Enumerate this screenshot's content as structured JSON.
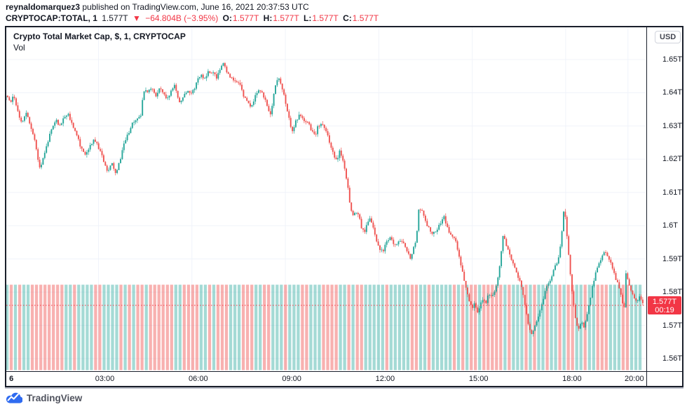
{
  "header": {
    "author": "reynaldomarquez3",
    "published": " published on TradingView.com, June 16, 2021 20:37:53 UTC",
    "symbol": "CRYPTOCAP:TOTAL, 1",
    "last_price": "1.577T",
    "direction_icon": "▼",
    "change": "−64.804B (−3.95%)",
    "ohlc": [
      {
        "label": "O:",
        "value": "1.577T"
      },
      {
        "label": "H:",
        "value": "1.577T"
      },
      {
        "label": "L:",
        "value": "1.577T"
      },
      {
        "label": "C:",
        "value": "1.577T"
      }
    ]
  },
  "legend": {
    "title": "Crypto Total Market Cap, $, 1, CRYPTOCAP",
    "indicator": "Vol"
  },
  "axis": {
    "currency_button": "USD"
  },
  "price_label": {
    "value": "1.577T",
    "countdown": "00:19"
  },
  "footer": {
    "brand": "TradingView"
  },
  "colors": {
    "up": "#26a69a",
    "down": "#ef5350",
    "volume_up": "rgba(38,166,154,0.42)",
    "volume_down": "rgba(239,83,80,0.45)",
    "grid": "#f0f3fa",
    "price_line": "#f23645",
    "badge": "#f23645",
    "accent_red": "#f23645",
    "brand_blue": "#2962ff"
  },
  "chart_data": {
    "type": "candlestick",
    "title": "Crypto Total Market Cap, $, 1, CRYPTOCAP",
    "symbol": "CRYPTOCAP:TOTAL",
    "interval": "1 minute",
    "date": "June 16, 2021",
    "last_price": 1.577,
    "change_abs": "-64.804B",
    "change_pct": "-3.95%",
    "price_axis": {
      "unit": "trillion USD",
      "min": 1.555,
      "max": 1.656,
      "gridlines": [
        1.65,
        1.64,
        1.63,
        1.62,
        1.61,
        1.6,
        1.59,
        1.58,
        1.57,
        1.56
      ],
      "labels": [
        "1.65T",
        "1.64T",
        "1.63T",
        "1.62T",
        "1.61T",
        "1.6T",
        "1.59T",
        "1.58T",
        "1.57T",
        "1.56T"
      ]
    },
    "time_axis": {
      "start_hour": 0,
      "end_hour": 20.6,
      "ticks": [
        {
          "hour": 0,
          "label": "6",
          "bold": true
        },
        {
          "hour": 3,
          "label": "03:00"
        },
        {
          "hour": 6,
          "label": "06:00"
        },
        {
          "hour": 9,
          "label": "09:00"
        },
        {
          "hour": 12,
          "label": "12:00"
        },
        {
          "hour": 15,
          "label": "15:00"
        },
        {
          "hour": 18,
          "label": "18:00"
        },
        {
          "hour": 20,
          "label": "20:00"
        }
      ]
    },
    "price_line_value": 1.577,
    "keypoints": [
      [
        0.02,
        1.6375
      ],
      [
        0.11,
        1.64
      ],
      [
        0.2,
        1.637
      ],
      [
        0.33,
        1.639
      ],
      [
        0.47,
        1.634
      ],
      [
        0.6,
        1.631
      ],
      [
        0.74,
        1.634
      ],
      [
        0.87,
        1.63
      ],
      [
        1.01,
        1.626
      ],
      [
        1.12,
        1.619
      ],
      [
        1.19,
        1.617
      ],
      [
        1.28,
        1.621
      ],
      [
        1.42,
        1.625
      ],
      [
        1.55,
        1.629
      ],
      [
        1.68,
        1.632
      ],
      [
        1.82,
        1.63
      ],
      [
        1.96,
        1.633
      ],
      [
        2.09,
        1.6335
      ],
      [
        2.23,
        1.63
      ],
      [
        2.36,
        1.627
      ],
      [
        2.5,
        1.623
      ],
      [
        2.63,
        1.621
      ],
      [
        2.77,
        1.624
      ],
      [
        2.9,
        1.626
      ],
      [
        3.04,
        1.624
      ],
      [
        3.17,
        1.621
      ],
      [
        3.26,
        1.618
      ],
      [
        3.37,
        1.616
      ],
      [
        3.49,
        1.619
      ],
      [
        3.58,
        1.616
      ],
      [
        3.67,
        1.617
      ],
      [
        3.78,
        1.621
      ],
      [
        3.89,
        1.625
      ],
      [
        4.03,
        1.628
      ],
      [
        4.16,
        1.631
      ],
      [
        4.3,
        1.632
      ],
      [
        4.41,
        1.633
      ],
      [
        4.5,
        1.641
      ],
      [
        4.61,
        1.64
      ],
      [
        4.75,
        1.6415
      ],
      [
        4.88,
        1.639
      ],
      [
        5.02,
        1.641
      ],
      [
        5.15,
        1.6395
      ],
      [
        5.29,
        1.638
      ],
      [
        5.42,
        1.6415
      ],
      [
        5.51,
        1.6425
      ],
      [
        5.65,
        1.637
      ],
      [
        5.78,
        1.639
      ],
      [
        5.92,
        1.6405
      ],
      [
        6.05,
        1.64
      ],
      [
        6.19,
        1.6425
      ],
      [
        6.32,
        1.6455
      ],
      [
        6.46,
        1.644
      ],
      [
        6.59,
        1.6465
      ],
      [
        6.73,
        1.646
      ],
      [
        6.86,
        1.6445
      ],
      [
        7.0,
        1.6485
      ],
      [
        7.07,
        1.6495
      ],
      [
        7.18,
        1.646
      ],
      [
        7.31,
        1.6445
      ],
      [
        7.45,
        1.6435
      ],
      [
        7.58,
        1.6425
      ],
      [
        7.72,
        1.639
      ],
      [
        7.85,
        1.637
      ],
      [
        7.97,
        1.6355
      ],
      [
        8.08,
        1.639
      ],
      [
        8.19,
        1.641
      ],
      [
        8.3,
        1.6405
      ],
      [
        8.44,
        1.637
      ],
      [
        8.57,
        1.6335
      ],
      [
        8.66,
        1.638
      ],
      [
        8.75,
        1.643
      ],
      [
        8.84,
        1.6445
      ],
      [
        8.93,
        1.642
      ],
      [
        9.02,
        1.639
      ],
      [
        9.11,
        1.635
      ],
      [
        9.2,
        1.631
      ],
      [
        9.29,
        1.628
      ],
      [
        9.41,
        1.632
      ],
      [
        9.52,
        1.6335
      ],
      [
        9.63,
        1.632
      ],
      [
        9.75,
        1.6315
      ],
      [
        9.88,
        1.629
      ],
      [
        10.0,
        1.627
      ],
      [
        10.11,
        1.63
      ],
      [
        10.22,
        1.6305
      ],
      [
        10.33,
        1.629
      ],
      [
        10.42,
        1.627
      ],
      [
        10.53,
        1.6235
      ],
      [
        10.62,
        1.621
      ],
      [
        10.71,
        1.6195
      ],
      [
        10.8,
        1.6225
      ],
      [
        10.89,
        1.62
      ],
      [
        10.96,
        1.6165
      ],
      [
        11.05,
        1.612
      ],
      [
        11.14,
        1.606
      ],
      [
        11.23,
        1.603
      ],
      [
        11.32,
        1.6045
      ],
      [
        11.41,
        1.603
      ],
      [
        11.5,
        1.5995
      ],
      [
        11.59,
        1.598
      ],
      [
        11.68,
        1.601
      ],
      [
        11.77,
        1.6025
      ],
      [
        11.86,
        1.6
      ],
      [
        11.95,
        1.5965
      ],
      [
        12.06,
        1.5935
      ],
      [
        12.17,
        1.592
      ],
      [
        12.29,
        1.5945
      ],
      [
        12.4,
        1.5965
      ],
      [
        12.51,
        1.595
      ],
      [
        12.62,
        1.594
      ],
      [
        12.74,
        1.5955
      ],
      [
        12.85,
        1.5945
      ],
      [
        12.96,
        1.5925
      ],
      [
        13.07,
        1.59
      ],
      [
        13.18,
        1.5935
      ],
      [
        13.27,
        1.597
      ],
      [
        13.34,
        1.6055
      ],
      [
        13.43,
        1.6045
      ],
      [
        13.52,
        1.6025
      ],
      [
        13.61,
        1.6
      ],
      [
        13.7,
        1.5985
      ],
      [
        13.79,
        1.5975
      ],
      [
        13.88,
        1.5985
      ],
      [
        13.97,
        1.5995
      ],
      [
        14.06,
        1.6015
      ],
      [
        14.15,
        1.6025
      ],
      [
        14.24,
        1.6
      ],
      [
        14.33,
        1.5975
      ],
      [
        14.42,
        1.5965
      ],
      [
        14.51,
        1.5955
      ],
      [
        14.6,
        1.5925
      ],
      [
        14.69,
        1.588
      ],
      [
        14.78,
        1.5845
      ],
      [
        14.87,
        1.58
      ],
      [
        14.96,
        1.5775
      ],
      [
        15.05,
        1.5755
      ],
      [
        15.14,
        1.5765
      ],
      [
        15.23,
        1.574
      ],
      [
        15.32,
        1.5765
      ],
      [
        15.41,
        1.5785
      ],
      [
        15.5,
        1.577
      ],
      [
        15.59,
        1.5795
      ],
      [
        15.68,
        1.5785
      ],
      [
        15.77,
        1.5805
      ],
      [
        15.86,
        1.5835
      ],
      [
        15.95,
        1.589
      ],
      [
        16.04,
        1.5965
      ],
      [
        16.13,
        1.595
      ],
      [
        16.22,
        1.592
      ],
      [
        16.31,
        1.59
      ],
      [
        16.4,
        1.588
      ],
      [
        16.49,
        1.5855
      ],
      [
        16.58,
        1.5835
      ],
      [
        16.67,
        1.58
      ],
      [
        16.76,
        1.5755
      ],
      [
        16.85,
        1.571
      ],
      [
        16.94,
        1.5675
      ],
      [
        17.03,
        1.569
      ],
      [
        17.12,
        1.5715
      ],
      [
        17.21,
        1.574
      ],
      [
        17.3,
        1.5765
      ],
      [
        17.39,
        1.58
      ],
      [
        17.48,
        1.5825
      ],
      [
        17.57,
        1.584
      ],
      [
        17.66,
        1.5865
      ],
      [
        17.75,
        1.5885
      ],
      [
        17.84,
        1.591
      ],
      [
        17.91,
        1.5955
      ],
      [
        17.97,
        1.6035
      ],
      [
        18.02,
        1.606
      ],
      [
        18.06,
        1.6
      ],
      [
        18.13,
        1.594
      ],
      [
        18.2,
        1.586
      ],
      [
        18.27,
        1.5795
      ],
      [
        18.33,
        1.5745
      ],
      [
        18.4,
        1.571
      ],
      [
        18.47,
        1.5685
      ],
      [
        18.56,
        1.5715
      ],
      [
        18.65,
        1.5695
      ],
      [
        18.74,
        1.573
      ],
      [
        18.83,
        1.5775
      ],
      [
        18.92,
        1.582
      ],
      [
        19.01,
        1.586
      ],
      [
        19.1,
        1.5885
      ],
      [
        19.19,
        1.59
      ],
      [
        19.28,
        1.592
      ],
      [
        19.32,
        1.593
      ],
      [
        19.41,
        1.59
      ],
      [
        19.5,
        1.5885
      ],
      [
        19.59,
        1.586
      ],
      [
        19.68,
        1.5835
      ],
      [
        19.77,
        1.5815
      ],
      [
        19.86,
        1.5775
      ],
      [
        19.93,
        1.5745
      ],
      [
        19.99,
        1.586
      ],
      [
        20.08,
        1.582
      ],
      [
        20.17,
        1.58
      ],
      [
        20.26,
        1.5785
      ],
      [
        20.35,
        1.5775
      ],
      [
        20.44,
        1.579
      ],
      [
        20.53,
        1.5765
      ]
    ],
    "volume": {
      "style": "uniform-clipped-bars",
      "bars": 151,
      "top_y_price": "clipped at pane top"
    },
    "legend_position": "top-left inside plot",
    "grid": true
  }
}
